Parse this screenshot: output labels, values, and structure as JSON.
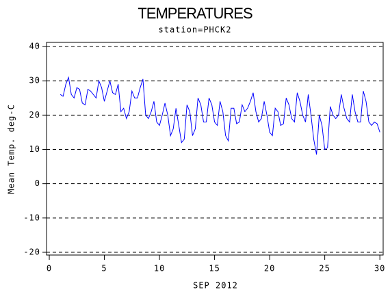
{
  "chart_data": {
    "type": "line",
    "title": "TEMPERATURES",
    "subtitle": "station=PHCK2",
    "x_label": "SEP 2012",
    "y_label": "Mean Temp. deg-C",
    "xlim": [
      -0.25,
      30.3
    ],
    "xticks": [
      0,
      5,
      10,
      15,
      20,
      25,
      30
    ],
    "ylim": [
      -20.8,
      41.2
    ],
    "yticks": [
      -20,
      -10,
      0,
      10,
      20,
      30,
      40
    ],
    "grid": true,
    "series": [
      {
        "color": "#0000ff",
        "x": [
          1.0,
          1.25,
          1.5,
          1.75,
          2.0,
          2.25,
          2.5,
          2.75,
          3.0,
          3.25,
          3.5,
          3.75,
          4.0,
          4.25,
          4.5,
          4.75,
          5.0,
          5.25,
          5.5,
          5.75,
          6.0,
          6.25,
          6.5,
          6.75,
          7.0,
          7.25,
          7.5,
          7.75,
          8.0,
          8.25,
          8.5,
          8.75,
          9.0,
          9.25,
          9.5,
          9.75,
          10.0,
          10.25,
          10.5,
          10.75,
          11.0,
          11.25,
          11.5,
          11.75,
          12.0,
          12.25,
          12.5,
          12.75,
          13.0,
          13.25,
          13.5,
          13.75,
          14.0,
          14.25,
          14.5,
          14.75,
          15.0,
          15.25,
          15.5,
          15.75,
          16.0,
          16.25,
          16.5,
          16.75,
          17.0,
          17.25,
          17.5,
          17.75,
          18.0,
          18.25,
          18.5,
          18.75,
          19.0,
          19.25,
          19.5,
          19.75,
          20.0,
          20.25,
          20.5,
          20.75,
          21.0,
          21.25,
          21.5,
          21.75,
          22.0,
          22.25,
          22.5,
          22.75,
          23.0,
          23.25,
          23.5,
          23.75,
          24.0,
          24.25,
          24.5,
          24.75,
          25.0,
          25.25,
          25.5,
          25.75,
          26.0,
          26.25,
          26.5,
          26.75,
          27.0,
          27.25,
          27.5,
          27.75,
          28.0,
          28.25,
          28.5,
          28.75,
          29.0,
          29.25,
          29.5,
          29.75,
          30.0
        ],
        "values": [
          26,
          25.5,
          29,
          31,
          26,
          25,
          28,
          27.5,
          23.5,
          23,
          27.5,
          27,
          26,
          25,
          30,
          28,
          24,
          27,
          30,
          26.5,
          26,
          29,
          21,
          22,
          19,
          21,
          27,
          25,
          25,
          28,
          30.5,
          20,
          19,
          21,
          24,
          18,
          17,
          20,
          23.5,
          20,
          14,
          16,
          22,
          17,
          12,
          13,
          23,
          21,
          14,
          16,
          25,
          23,
          18,
          18,
          25,
          23,
          18,
          17,
          24,
          21,
          14,
          12.5,
          22,
          22,
          17.5,
          18,
          23,
          21,
          22,
          24,
          26.5,
          21,
          18,
          19,
          24,
          20,
          15,
          14,
          22,
          21,
          17,
          17.5,
          25,
          23,
          19,
          18,
          26.5,
          24,
          20,
          18,
          26,
          20,
          13,
          8.5,
          20,
          17,
          10,
          10.5,
          22.5,
          20,
          19,
          20,
          26,
          22,
          19,
          18,
          26,
          21,
          18,
          18,
          27,
          24,
          18,
          17,
          18,
          17.5,
          15
        ]
      }
    ]
  }
}
